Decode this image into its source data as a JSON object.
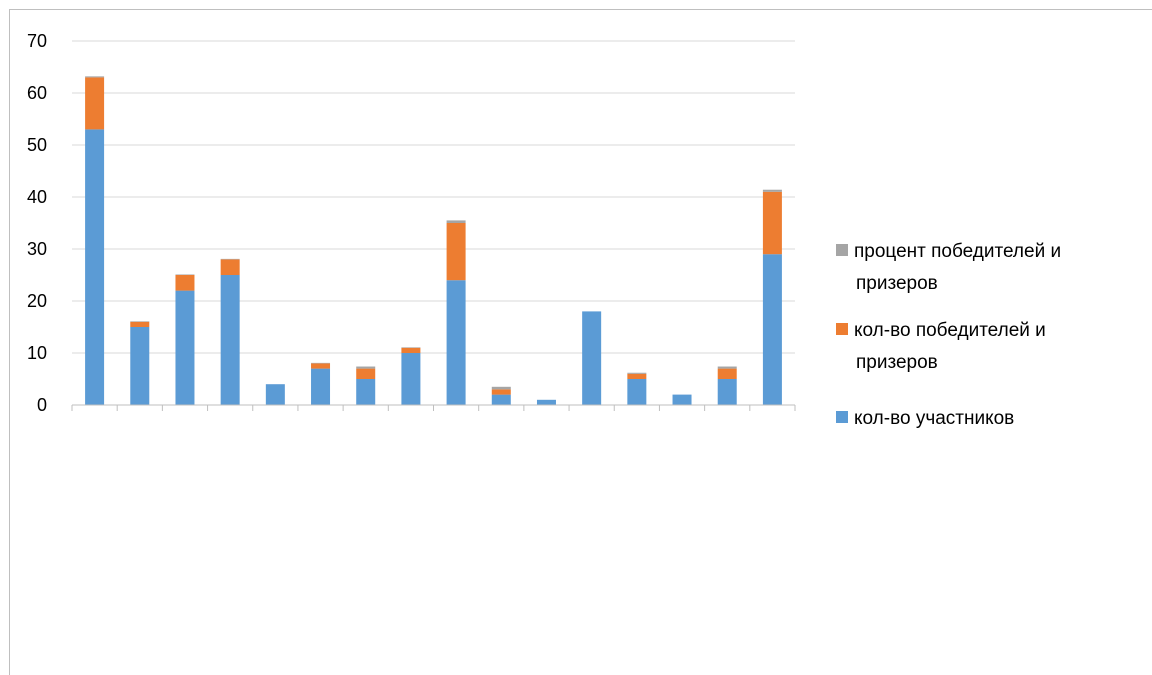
{
  "chart_data": {
    "type": "bar",
    "stacked": true,
    "categories": [
      "",
      "",
      "",
      "",
      "",
      "",
      "",
      "",
      "",
      "",
      "",
      "",
      "",
      "",
      "",
      ""
    ],
    "series": [
      {
        "name": "кол-во участников",
        "color": "#5b9bd5",
        "values": [
          53,
          15,
          22,
          25,
          4,
          7,
          5,
          10,
          24,
          2,
          1,
          18,
          5,
          2,
          5,
          29
        ]
      },
      {
        "name": "кол-во победителей и призеров",
        "color": "#ed7d31",
        "values": [
          10,
          1,
          3,
          3,
          0,
          1,
          2,
          1,
          11,
          1,
          0,
          0,
          1,
          0,
          2,
          12
        ]
      },
      {
        "name": "процент победителей и призеров",
        "color": "#a5a5a5",
        "values": [
          0.2,
          0.1,
          0.1,
          0.1,
          0,
          0.1,
          0.4,
          0.1,
          0.5,
          0.5,
          0,
          0,
          0.2,
          0,
          0.4,
          0.4
        ]
      }
    ],
    "ylim": [
      0,
      70
    ],
    "yticks": [
      "0",
      "10",
      "20",
      "30",
      "40",
      "50",
      "60",
      "70"
    ],
    "grid": true,
    "legend_position": "right",
    "legend_lines": [
      [
        "процент победителей и",
        "призеров"
      ],
      [
        "кол-во победителей и",
        "призеров"
      ],
      [
        "кол-во участников"
      ]
    ]
  }
}
